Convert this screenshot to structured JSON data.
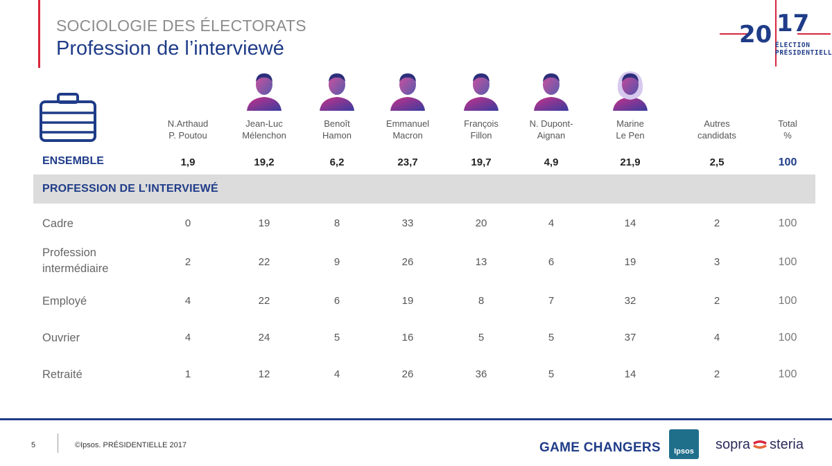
{
  "header": {
    "kicker": "SOCIOLOGIE DES ÉLECTORATS",
    "title": "Profession de l’interviewé"
  },
  "logo": {
    "digits_left": "20",
    "digits_right": "17",
    "sub_line1": "ÉLECTION",
    "sub_line2": "PRÉSIDENTIELLE"
  },
  "candidates": [
    {
      "line1": "N.Arthaud",
      "line2": "P. Poutou",
      "ensemble": "1,9",
      "portrait": false
    },
    {
      "line1": "Jean-Luc",
      "line2": "Mélenchon",
      "ensemble": "19,2",
      "portrait": true
    },
    {
      "line1": "Benoît",
      "line2": "Hamon",
      "ensemble": "6,2",
      "portrait": true
    },
    {
      "line1": "Emmanuel",
      "line2": "Macron",
      "ensemble": "23,7",
      "portrait": true
    },
    {
      "line1": "François",
      "line2": "Fillon",
      "ensemble": "19,7",
      "portrait": true
    },
    {
      "line1": "N. Dupont-",
      "line2": "Aignan",
      "ensemble": "4,9",
      "portrait": true
    },
    {
      "line1": "Marine",
      "line2": "Le Pen",
      "ensemble": "21,9",
      "portrait": true
    },
    {
      "line1": "Autres",
      "line2": "candidats",
      "ensemble": "2,5",
      "portrait": false
    },
    {
      "line1": "Total",
      "line2": "%",
      "ensemble": "100",
      "portrait": false
    }
  ],
  "ensemble_label": "ENSEMBLE",
  "section_label": "PROFESSION DE L’INTERVIEWÉ",
  "rows": [
    {
      "label1": "Cadre",
      "label2": "",
      "values": [
        "0",
        "19",
        "8",
        "33",
        "20",
        "4",
        "14",
        "2",
        "100"
      ]
    },
    {
      "label1": "Profession",
      "label2": "intermédiaire",
      "values": [
        "2",
        "22",
        "9",
        "26",
        "13",
        "6",
        "19",
        "3",
        "100"
      ]
    },
    {
      "label1": "Employé",
      "label2": "",
      "values": [
        "4",
        "22",
        "6",
        "19",
        "8",
        "7",
        "32",
        "2",
        "100"
      ]
    },
    {
      "label1": "Ouvrier",
      "label2": "",
      "values": [
        "4",
        "24",
        "5",
        "16",
        "5",
        "5",
        "37",
        "4",
        "100"
      ]
    },
    {
      "label1": "Retraité",
      "label2": "",
      "values": [
        "1",
        "12",
        "4",
        "26",
        "36",
        "5",
        "14",
        "2",
        "100"
      ]
    }
  ],
  "footer": {
    "page_number": "5",
    "copyright": "©Ipsos.  PRÉSIDENTIELLE 2017",
    "game_changers": "GAME CHANGERS",
    "ipsos": "Ipsos",
    "sopra_left": "sopra",
    "sopra_right": "steria"
  },
  "colors": {
    "brand_blue": "#1f3c88",
    "accent_red": "#d7263d",
    "band_gray": "#dcdcdc"
  }
}
